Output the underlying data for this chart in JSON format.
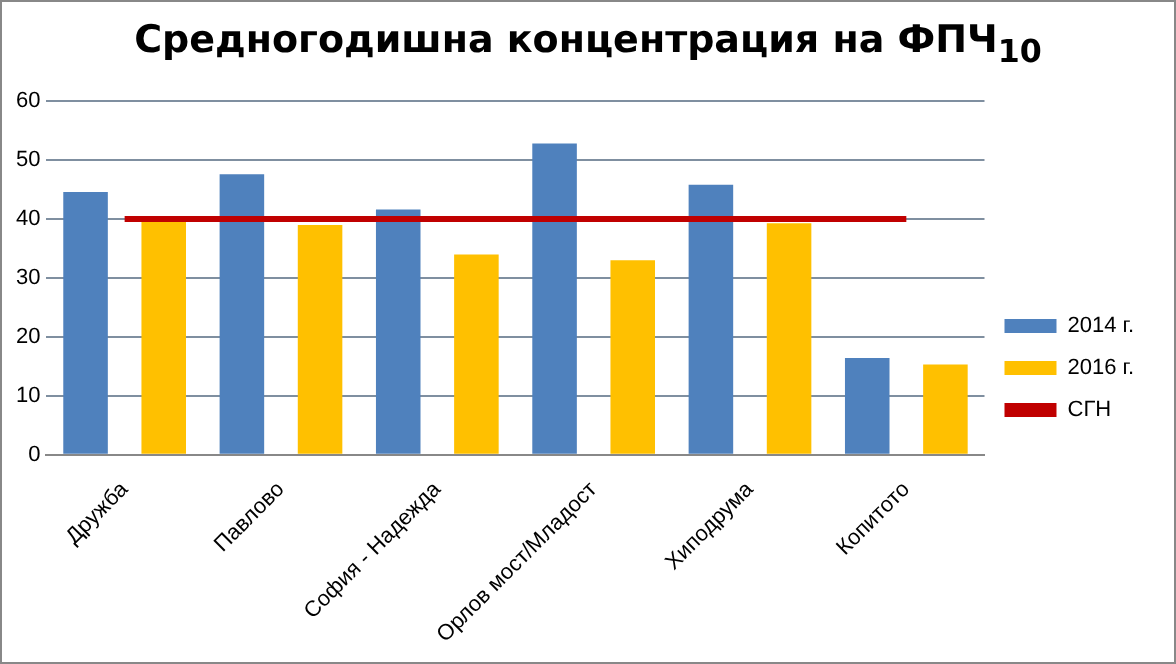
{
  "chart_data": {
    "type": "bar",
    "title": "Средногодишна концентрация на ФПЧ$_{10}$",
    "categories": [
      "Дружба",
      "Павлово",
      "София - Надежда",
      "Орлов мост/Младост",
      "Хиподрума",
      "Копитото"
    ],
    "series": [
      {
        "name": "2014 г.",
        "color": "#4f81bd",
        "values": [
          44.6,
          47.6,
          41.6,
          52.8,
          45.8,
          16.4
        ]
      },
      {
        "name": "2016 г.",
        "color": "#ffc000",
        "values": [
          40,
          39,
          34,
          33,
          39.3,
          15.3
        ]
      },
      {
        "name": "СГН",
        "type": "line",
        "color": "#c00000",
        "values": [
          40,
          40,
          40,
          40,
          40,
          40
        ]
      }
    ],
    "ylim": [
      0,
      60
    ],
    "yticks": [
      0,
      10,
      20,
      30,
      40,
      50,
      60
    ],
    "grid": "y",
    "legend": "right",
    "marker": "none"
  }
}
